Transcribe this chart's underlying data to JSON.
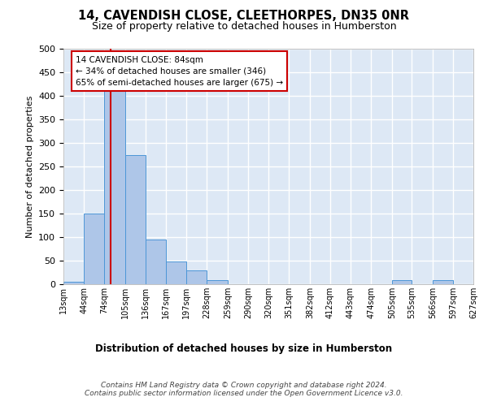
{
  "title1": "14, CAVENDISH CLOSE, CLEETHORPES, DN35 0NR",
  "title2": "Size of property relative to detached houses in Humberston",
  "xlabel": "Distribution of detached houses by size in Humberston",
  "ylabel": "Number of detached properties",
  "bin_edges": [
    13,
    44,
    74,
    105,
    136,
    167,
    197,
    228,
    259,
    290,
    320,
    351,
    382,
    412,
    443,
    474,
    505,
    535,
    566,
    597,
    627
  ],
  "bar_heights": [
    5,
    150,
    420,
    275,
    95,
    48,
    30,
    8,
    0,
    0,
    0,
    0,
    0,
    0,
    0,
    0,
    8,
    0,
    8,
    0
  ],
  "bar_color": "#aec6e8",
  "bar_edge_color": "#4c96d7",
  "vline_x": 84,
  "vline_color": "#cc0000",
  "ylim": [
    0,
    500
  ],
  "yticks": [
    0,
    50,
    100,
    150,
    200,
    250,
    300,
    350,
    400,
    450,
    500
  ],
  "annotation_line1": "14 CAVENDISH CLOSE: 84sqm",
  "annotation_line2": "← 34% of detached houses are smaller (346)",
  "annotation_line3": "65% of semi-detached houses are larger (675) →",
  "annotation_box_color": "#ffffff",
  "annotation_box_edge": "#cc0000",
  "footer_text": "Contains HM Land Registry data © Crown copyright and database right 2024.\nContains public sector information licensed under the Open Government Licence v3.0.",
  "bg_color": "#dde8f5",
  "grid_color": "#ffffff"
}
